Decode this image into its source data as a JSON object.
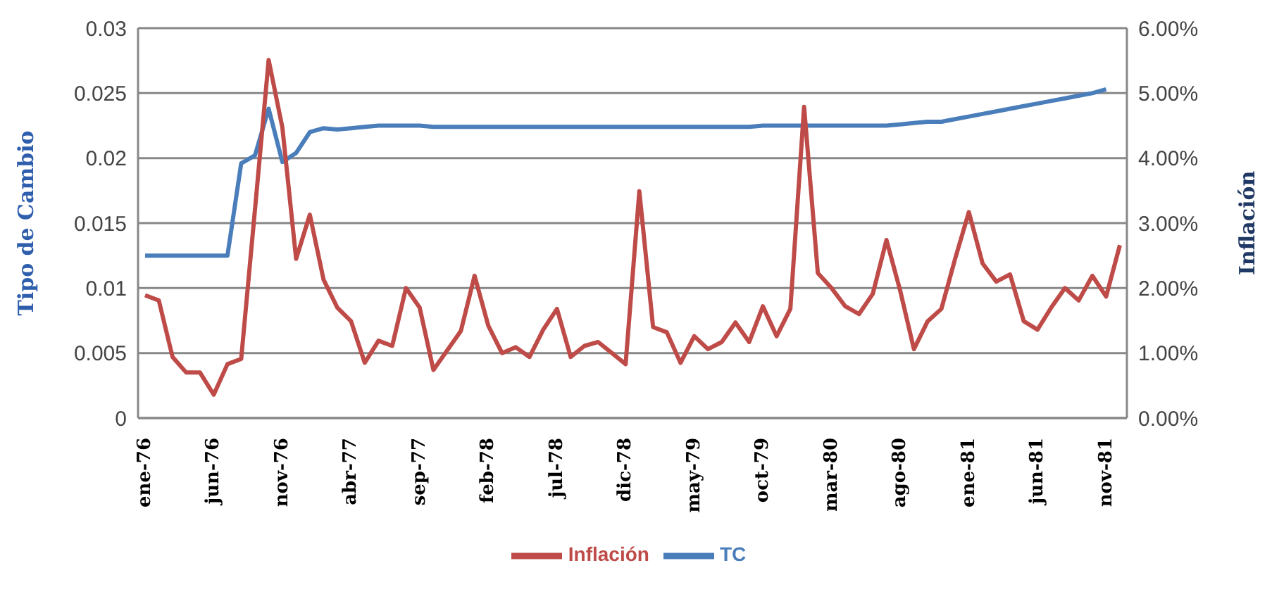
{
  "chart_data": {
    "type": "line",
    "ylabel": "Tipo de Cambio",
    "y2label": "Inflación",
    "categories": [
      "ene-76",
      null,
      null,
      null,
      null,
      "jun-76",
      null,
      null,
      null,
      null,
      "nov-76",
      null,
      null,
      null,
      null,
      "abr-77",
      null,
      null,
      null,
      null,
      "sep-77",
      null,
      null,
      null,
      null,
      "feb-78",
      null,
      null,
      null,
      null,
      "jul-78",
      null,
      null,
      null,
      null,
      "dic-78",
      null,
      null,
      null,
      null,
      "may-79",
      null,
      null,
      null,
      null,
      "oct-79",
      null,
      null,
      null,
      null,
      "mar-80",
      null,
      null,
      null,
      null,
      "ago-80",
      null,
      null,
      null,
      null,
      "ene-81",
      null,
      null,
      null,
      null,
      "jun-81",
      null,
      null,
      null,
      null,
      "nov-81",
      null
    ],
    "series": [
      {
        "name": "TC",
        "color": "#4a7ebb",
        "values": [
          0.0125,
          0.0125,
          0.0125,
          0.0125,
          0.0125,
          0.0125,
          0.0125,
          0.0196,
          0.0202,
          0.0238,
          0.0197,
          0.0204,
          0.022,
          0.0223,
          0.0222,
          0.0223,
          0.0224,
          0.0225,
          0.0225,
          0.0225,
          0.0225,
          0.0224,
          0.0224,
          0.0224,
          0.0224,
          0.0224,
          0.0224,
          0.0224,
          0.0224,
          0.0224,
          0.0224,
          0.0224,
          0.0224,
          0.0224,
          0.0224,
          0.0224,
          0.0224,
          0.0224,
          0.0224,
          0.0224,
          0.0224,
          0.0224,
          0.0224,
          0.0224,
          0.0224,
          0.0225,
          0.0225,
          0.0225,
          0.0225,
          0.0225,
          0.0225,
          0.0225,
          0.0225,
          0.0225,
          0.0225,
          0.0226,
          0.0227,
          0.0228,
          0.0228,
          0.023,
          0.0232,
          0.0234,
          0.0236,
          0.0238,
          0.024,
          0.0242,
          0.0244,
          0.0246,
          0.0248,
          0.025,
          0.0253,
          null
        ]
      },
      {
        "name": "Inflación",
        "color": "#be4b48",
        "axis": "y2",
        "values": [
          1.89,
          1.81,
          0.94,
          0.7,
          0.7,
          0.36,
          0.83,
          0.91,
          3.2,
          5.51,
          4.47,
          2.45,
          3.13,
          2.13,
          1.7,
          1.49,
          0.85,
          1.19,
          1.11,
          2.0,
          1.7,
          0.74,
          1.04,
          1.34,
          2.19,
          1.42,
          1.0,
          1.09,
          0.94,
          1.36,
          1.68,
          0.94,
          1.11,
          1.17,
          1.0,
          0.83,
          3.49,
          1.4,
          1.32,
          0.85,
          1.26,
          1.06,
          1.17,
          1.47,
          1.17,
          1.72,
          1.26,
          1.68,
          4.79,
          2.23,
          2.0,
          1.72,
          1.6,
          1.91,
          2.74,
          1.96,
          1.06,
          1.49,
          1.68,
          2.45,
          3.17,
          2.38,
          2.1,
          2.21,
          1.49,
          1.36,
          1.7,
          2.0,
          1.81,
          2.19,
          1.87,
          2.66
        ]
      }
    ],
    "ylim": [
      0,
      0.03
    ],
    "yticks": [
      0,
      0.005,
      0.01,
      0.015,
      0.02,
      0.025,
      0.03
    ],
    "y2lim": [
      0,
      6
    ],
    "y2ticks": [
      {
        "value": 0,
        "label": "0.00%"
      },
      {
        "value": 1,
        "label": "1.00%"
      },
      {
        "value": 2,
        "label": "2.00%"
      },
      {
        "value": 3,
        "label": "3.00%"
      },
      {
        "value": 4,
        "label": "4.00%"
      },
      {
        "value": 5,
        "label": "5.00%"
      },
      {
        "value": 6,
        "label": "6.00%"
      }
    ],
    "grid": "y",
    "legend": "bottom",
    "marker": "none",
    "line_style": "solid"
  }
}
